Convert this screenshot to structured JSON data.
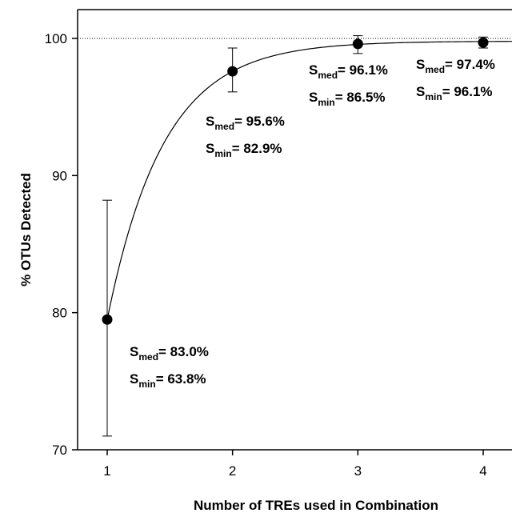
{
  "chart_data": {
    "type": "scatter",
    "xlabel": "Number of TREs used in Combination",
    "ylabel": "% OTUs Detected",
    "xlim": [
      0.75,
      4.25
    ],
    "ylim": [
      70,
      102.2
    ],
    "xticks": [
      1,
      2,
      3,
      4
    ],
    "yticks": [
      70,
      80,
      90,
      100
    ],
    "reference_line": {
      "y": 100,
      "style": "dotted"
    },
    "points": [
      {
        "x": 1,
        "y": 79.5,
        "err_low": 71.0,
        "err_high": 88.2
      },
      {
        "x": 2,
        "y": 97.6,
        "err_low": 96.1,
        "err_high": 99.3
      },
      {
        "x": 3,
        "y": 99.6,
        "err_low": 98.9,
        "err_high": 100.2
      },
      {
        "x": 4,
        "y": 99.7,
        "err_low": 99.3,
        "err_high": 100.1
      }
    ],
    "fit_curve": {
      "type": "saturating",
      "asymptote": 99.8
    },
    "annotations": [
      {
        "at_x": 1,
        "med_label": "S",
        "med_sub": "med",
        "med_val": "= 83.0%",
        "min_label": "S",
        "min_sub": "min",
        "min_val": "= 63.8%"
      },
      {
        "at_x": 2,
        "med_label": "S",
        "med_sub": "med",
        "med_val": "= 95.6%",
        "min_label": "S",
        "min_sub": "min",
        "min_val": "= 82.9%"
      },
      {
        "at_x": 3,
        "med_label": "S",
        "med_sub": "med",
        "med_val": "= 96.1%",
        "min_label": "S",
        "min_sub": "min",
        "min_val": "= 86.5%"
      },
      {
        "at_x": 4,
        "med_label": "S",
        "med_sub": "med",
        "med_val": "= 97.4%",
        "min_label": "S",
        "min_sub": "min",
        "min_val": "= 96.1%"
      }
    ]
  }
}
